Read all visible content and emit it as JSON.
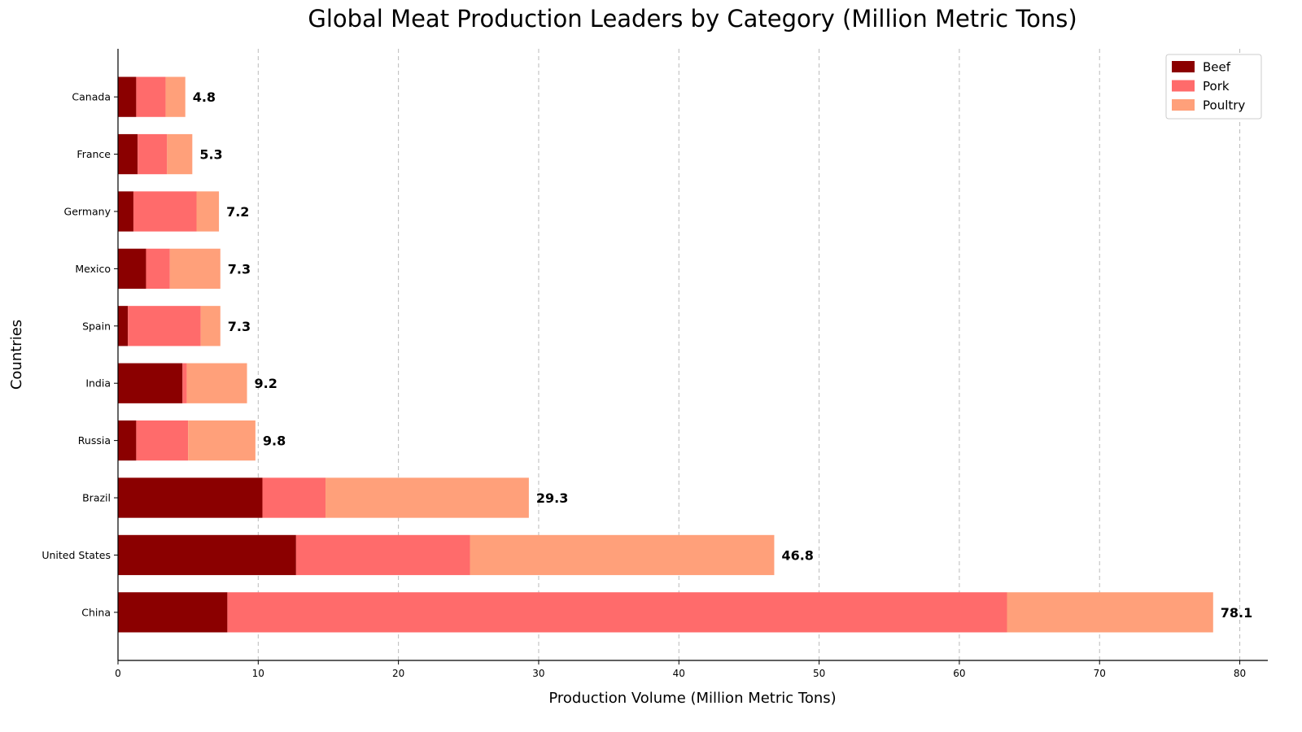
{
  "chart_data": {
    "type": "bar",
    "orientation": "horizontal",
    "stacked": true,
    "title": "Global Meat Production Leaders by Category (Million Metric Tons)",
    "xlabel": "Production Volume (Million Metric Tons)",
    "ylabel": "Countries",
    "xlim": [
      0,
      82
    ],
    "xticks": [
      0,
      10,
      20,
      30,
      40,
      50,
      60,
      70,
      80
    ],
    "grid": "x-dashed",
    "legend_position": "top-right",
    "categories": [
      "China",
      "United States",
      "Brazil",
      "Russia",
      "India",
      "Spain",
      "Mexico",
      "Germany",
      "France",
      "Canada"
    ],
    "series": [
      {
        "name": "Beef",
        "color": "#8B0000",
        "values": [
          7.8,
          12.7,
          10.3,
          1.3,
          4.6,
          0.7,
          2.0,
          1.1,
          1.4,
          1.3
        ]
      },
      {
        "name": "Pork",
        "color": "#FF6B6B",
        "values": [
          55.6,
          12.4,
          4.5,
          3.7,
          0.3,
          5.2,
          1.7,
          4.5,
          2.1,
          2.1
        ]
      },
      {
        "name": "Poultry",
        "color": "#FFA07A",
        "values": [
          14.7,
          21.7,
          14.5,
          4.8,
          4.3,
          1.4,
          3.6,
          1.6,
          1.8,
          1.4
        ]
      }
    ],
    "totals": [
      "78.1",
      "46.8",
      "29.3",
      "9.8",
      "9.2",
      "7.3",
      "7.3",
      "7.2",
      "5.3",
      "4.8"
    ]
  }
}
